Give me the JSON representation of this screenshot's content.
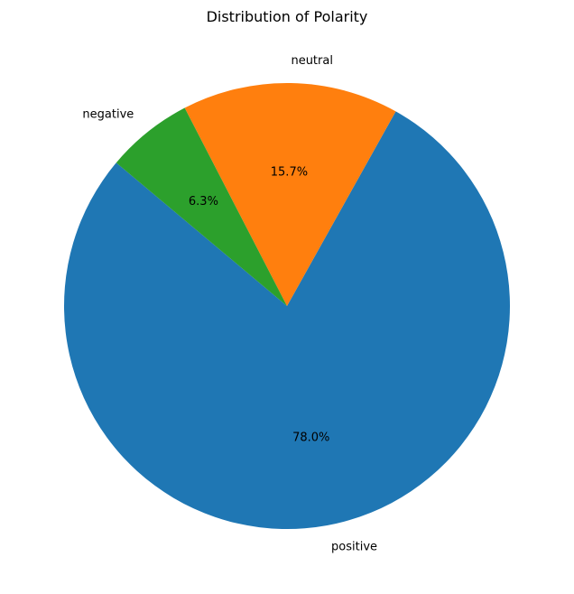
{
  "chart_data": {
    "type": "pie",
    "title": "Distribution of Polarity",
    "categories": [
      "positive",
      "neutral",
      "negative"
    ],
    "values": [
      78.0,
      15.7,
      6.3
    ],
    "value_labels": [
      "78.0%",
      "15.7%",
      "6.3%"
    ],
    "colors": [
      "#1f77b4",
      "#ff7f0e",
      "#2ca02c"
    ],
    "start_angle_deg": 140,
    "direction": "counterclockwise",
    "legend": "none"
  }
}
